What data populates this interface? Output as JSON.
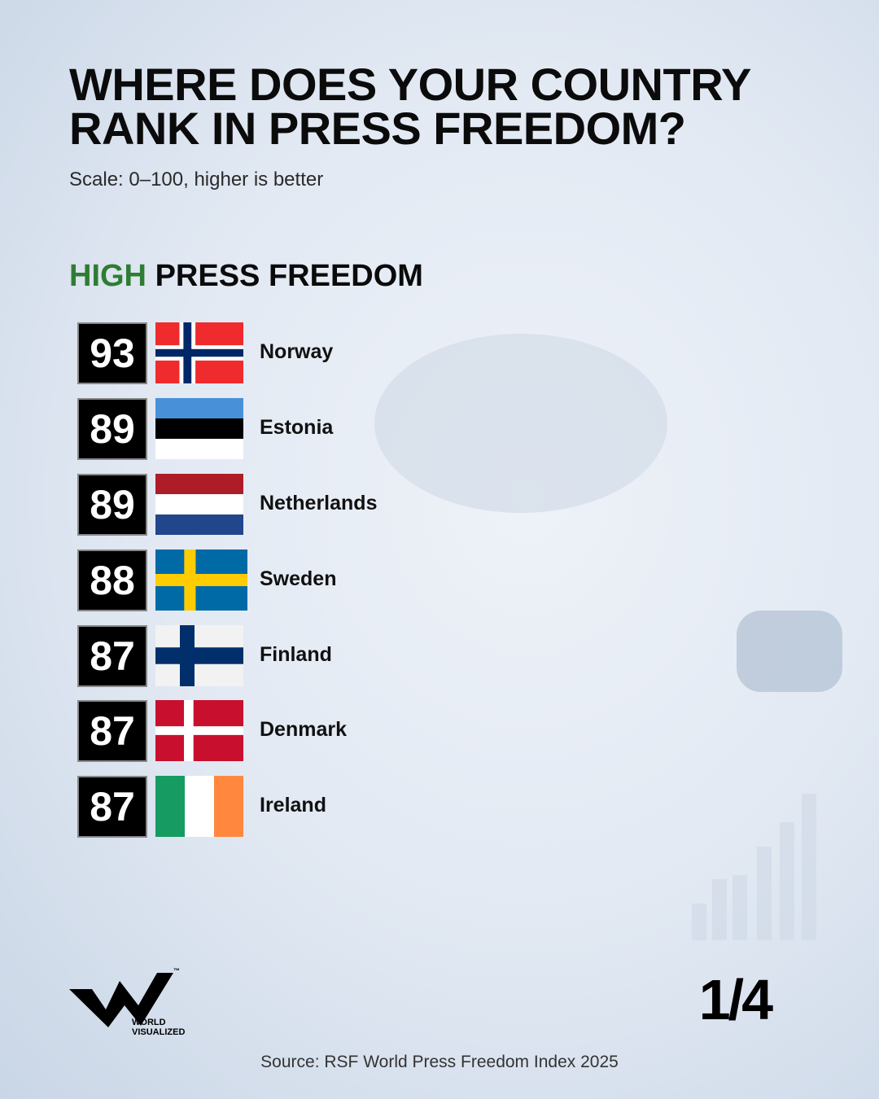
{
  "header": {
    "title_lines": [
      "WHERE DOES YOUR COUNTRY",
      "RANK IN PRESS FREEDOM?"
    ],
    "subtitle": "Scale: 0–100, higher is better"
  },
  "section": {
    "level": "HIGH",
    "heading": "PRESS FREEDOM"
  },
  "rows": [
    {
      "score": "93",
      "country": "Norway"
    },
    {
      "score": "89",
      "country": "Estonia"
    },
    {
      "score": "89",
      "country": "Netherlands"
    },
    {
      "score": "88",
      "country": "Sweden"
    },
    {
      "score": "87",
      "country": "Finland"
    },
    {
      "score": "87",
      "country": "Denmark"
    },
    {
      "score": "87",
      "country": "Ireland"
    }
  ],
  "logo": {
    "line1": "WORLD",
    "line2": "VISUALIZED",
    "mark": "™"
  },
  "page": "1/4",
  "source": "Source: RSF World Press Freedom Index 2025"
}
